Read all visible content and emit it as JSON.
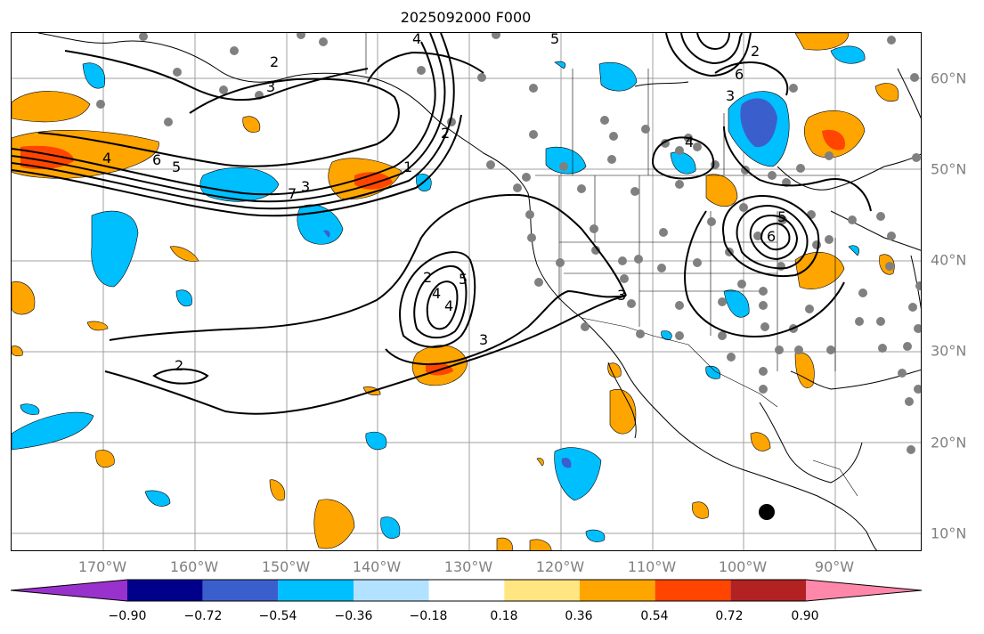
{
  "title": "2025092000 F000",
  "map": {
    "longitude_labels": [
      "170°W",
      "160°W",
      "150°W",
      "140°W",
      "130°W",
      "120°W",
      "110°W",
      "100°W",
      "90°W"
    ],
    "latitude_labels": [
      "60°N",
      "50°N",
      "40°N",
      "30°N",
      "20°N",
      "10°N"
    ],
    "contour_labels": [
      "2",
      "3",
      "4",
      "5",
      "6",
      "7",
      "1",
      "2",
      "3",
      "4",
      "5",
      "2",
      "3",
      "4",
      "5",
      "6",
      "2",
      "3",
      "4",
      "5",
      "6",
      "2",
      "3",
      "4"
    ],
    "station_marker_color": "#808080",
    "contour_color": "#000000",
    "grid_color": "#a0a0a0"
  },
  "colorbar": {
    "tick_labels": [
      "−0.90",
      "−0.72",
      "−0.54",
      "−0.36",
      "−0.18",
      "0.18",
      "0.36",
      "0.54",
      "0.72",
      "0.90"
    ],
    "colors": [
      "#9932cc",
      "#00008b",
      "#3a5fcd",
      "#00bfff",
      "#b2e2ff",
      "#ffffff",
      "#ffe680",
      "#ffa500",
      "#ff4500",
      "#b22222",
      "#ff88aa"
    ]
  }
}
